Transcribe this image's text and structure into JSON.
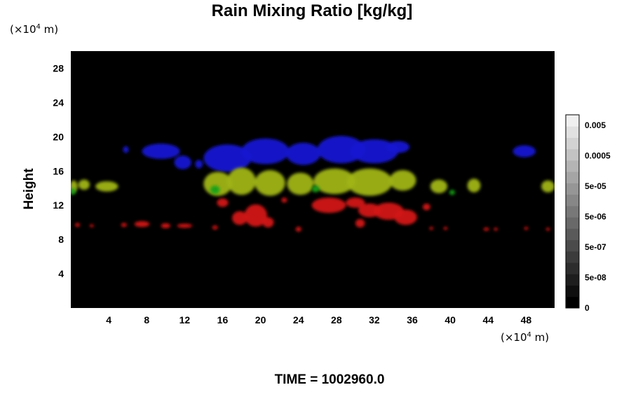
{
  "chart_data": {
    "type": "heatmap",
    "title": "Rain Mixing Ratio [kg/kg]",
    "ylabel": "Height",
    "xlabel": "",
    "x_unit": {
      "prefix": "(×10",
      "exp": "4",
      "suffix": " m)"
    },
    "y_unit": {
      "prefix": "(×10",
      "exp": "4",
      "suffix": " m)"
    },
    "xlim": [
      0,
      51
    ],
    "ylim": [
      0,
      30
    ],
    "x_ticks": [
      4,
      8,
      12,
      16,
      20,
      24,
      28,
      32,
      36,
      40,
      44,
      48
    ],
    "y_ticks": [
      4,
      8,
      12,
      16,
      20,
      24,
      28
    ],
    "grid": false,
    "background_color": "#000000",
    "colorbar": {
      "position": "right",
      "labels": [
        "0.005",
        "0.0005",
        "5e-05",
        "5e-06",
        "5e-07",
        "5e-08",
        "0"
      ],
      "levels": 17
    },
    "series": [
      {
        "color": "#1414d2",
        "regions": [
          {
            "x": 5.8,
            "y": 18.5,
            "rx": 0.3,
            "ry": 0.4
          },
          {
            "x": 9.5,
            "y": 18.3,
            "rx": 2.0,
            "ry": 0.9
          },
          {
            "x": 11.8,
            "y": 17.0,
            "rx": 0.9,
            "ry": 0.8
          },
          {
            "x": 13.5,
            "y": 16.8,
            "rx": 0.4,
            "ry": 0.5
          },
          {
            "x": 16.5,
            "y": 17.5,
            "rx": 2.5,
            "ry": 1.6
          },
          {
            "x": 20.5,
            "y": 18.3,
            "rx": 2.5,
            "ry": 1.5
          },
          {
            "x": 24.5,
            "y": 18.0,
            "rx": 1.8,
            "ry": 1.3
          },
          {
            "x": 28.5,
            "y": 18.5,
            "rx": 2.5,
            "ry": 1.6
          },
          {
            "x": 32.0,
            "y": 18.3,
            "rx": 2.5,
            "ry": 1.4
          },
          {
            "x": 34.5,
            "y": 18.8,
            "rx": 1.2,
            "ry": 0.7
          },
          {
            "x": 47.8,
            "y": 18.3,
            "rx": 1.2,
            "ry": 0.7
          }
        ]
      },
      {
        "color": "#a0b414",
        "regions": [
          {
            "x": 0.3,
            "y": 14.2,
            "rx": 0.4,
            "ry": 0.7
          },
          {
            "x": 1.4,
            "y": 14.4,
            "rx": 0.6,
            "ry": 0.6
          },
          {
            "x": 3.8,
            "y": 14.2,
            "rx": 1.2,
            "ry": 0.6
          },
          {
            "x": 15.5,
            "y": 14.5,
            "rx": 1.5,
            "ry": 1.4
          },
          {
            "x": 18.0,
            "y": 14.8,
            "rx": 1.5,
            "ry": 1.6
          },
          {
            "x": 21.0,
            "y": 14.6,
            "rx": 1.6,
            "ry": 1.5
          },
          {
            "x": 24.2,
            "y": 14.5,
            "rx": 1.4,
            "ry": 1.3
          },
          {
            "x": 27.8,
            "y": 14.8,
            "rx": 2.2,
            "ry": 1.5
          },
          {
            "x": 31.5,
            "y": 14.7,
            "rx": 2.4,
            "ry": 1.6
          },
          {
            "x": 35.0,
            "y": 14.9,
            "rx": 1.4,
            "ry": 1.2
          },
          {
            "x": 38.8,
            "y": 14.2,
            "rx": 0.9,
            "ry": 0.8
          },
          {
            "x": 42.5,
            "y": 14.3,
            "rx": 0.7,
            "ry": 0.8
          },
          {
            "x": 50.3,
            "y": 14.2,
            "rx": 0.7,
            "ry": 0.7
          }
        ]
      },
      {
        "color": "#d21414",
        "regions": [
          {
            "x": 16.0,
            "y": 12.3,
            "rx": 0.6,
            "ry": 0.5
          },
          {
            "x": 17.8,
            "y": 10.5,
            "rx": 0.8,
            "ry": 0.8
          },
          {
            "x": 19.5,
            "y": 10.8,
            "rx": 1.2,
            "ry": 1.3
          },
          {
            "x": 20.8,
            "y": 10.0,
            "rx": 0.6,
            "ry": 0.6
          },
          {
            "x": 22.5,
            "y": 12.6,
            "rx": 0.3,
            "ry": 0.3
          },
          {
            "x": 27.2,
            "y": 12.0,
            "rx": 1.8,
            "ry": 0.9
          },
          {
            "x": 30.0,
            "y": 12.3,
            "rx": 1.0,
            "ry": 0.6
          },
          {
            "x": 31.5,
            "y": 11.4,
            "rx": 1.2,
            "ry": 0.8
          },
          {
            "x": 33.5,
            "y": 11.3,
            "rx": 1.6,
            "ry": 1.0
          },
          {
            "x": 35.3,
            "y": 10.6,
            "rx": 1.2,
            "ry": 0.9
          },
          {
            "x": 30.5,
            "y": 9.9,
            "rx": 0.5,
            "ry": 0.5
          },
          {
            "x": 37.5,
            "y": 11.8,
            "rx": 0.4,
            "ry": 0.4
          },
          {
            "x": 0.7,
            "y": 9.7,
            "rx": 0.25,
            "ry": 0.25
          },
          {
            "x": 2.2,
            "y": 9.6,
            "rx": 0.2,
            "ry": 0.2
          },
          {
            "x": 5.6,
            "y": 9.7,
            "rx": 0.3,
            "ry": 0.25
          },
          {
            "x": 7.5,
            "y": 9.8,
            "rx": 0.8,
            "ry": 0.35
          },
          {
            "x": 10.0,
            "y": 9.6,
            "rx": 0.5,
            "ry": 0.3
          },
          {
            "x": 12.0,
            "y": 9.6,
            "rx": 0.8,
            "ry": 0.25
          },
          {
            "x": 15.2,
            "y": 9.4,
            "rx": 0.3,
            "ry": 0.25
          },
          {
            "x": 24.0,
            "y": 9.2,
            "rx": 0.3,
            "ry": 0.3
          },
          {
            "x": 38.0,
            "y": 9.3,
            "rx": 0.2,
            "ry": 0.2
          },
          {
            "x": 39.5,
            "y": 9.3,
            "rx": 0.2,
            "ry": 0.2
          },
          {
            "x": 43.8,
            "y": 9.2,
            "rx": 0.3,
            "ry": 0.2
          },
          {
            "x": 44.8,
            "y": 9.2,
            "rx": 0.2,
            "ry": 0.2
          },
          {
            "x": 48.0,
            "y": 9.3,
            "rx": 0.2,
            "ry": 0.2
          },
          {
            "x": 50.3,
            "y": 9.2,
            "rx": 0.2,
            "ry": 0.2
          }
        ]
      },
      {
        "color": "#14a014",
        "regions": [
          {
            "x": 0.2,
            "y": 13.6,
            "rx": 0.3,
            "ry": 0.4
          },
          {
            "x": 15.2,
            "y": 13.8,
            "rx": 0.5,
            "ry": 0.5
          },
          {
            "x": 25.8,
            "y": 13.9,
            "rx": 0.4,
            "ry": 0.4
          },
          {
            "x": 40.2,
            "y": 13.5,
            "rx": 0.3,
            "ry": 0.3
          }
        ]
      }
    ]
  },
  "footer": {
    "time_label": "TIME = 1002960.0"
  }
}
